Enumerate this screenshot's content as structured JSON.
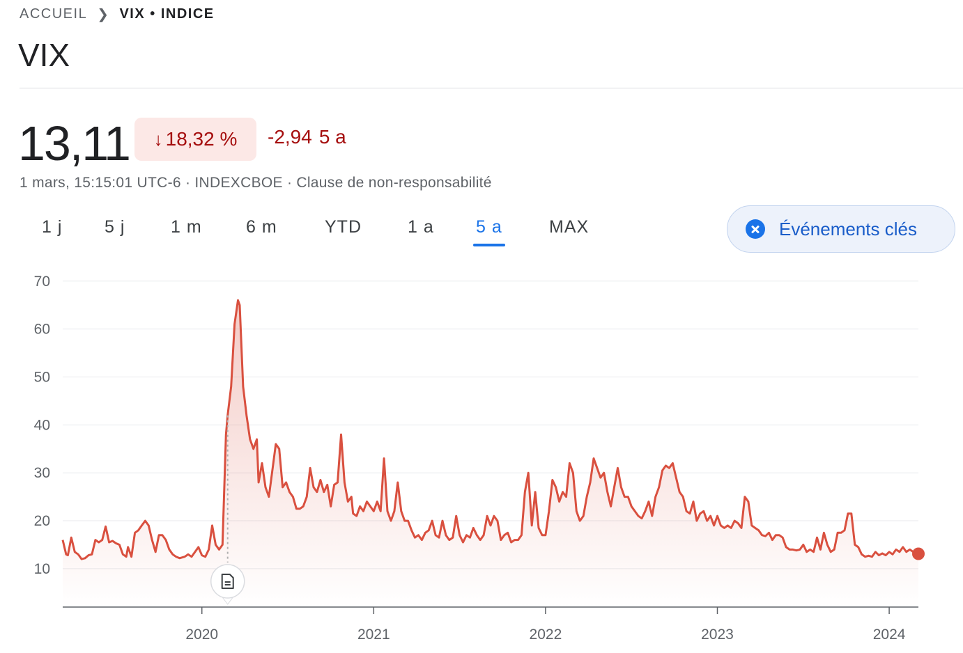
{
  "breadcrumb": {
    "home": "ACCUEIL",
    "current": "VIX • INDICE"
  },
  "title": "VIX",
  "quote": {
    "price": "13,11",
    "change_pct": "18,32 %",
    "change_abs": "-2,94",
    "period": "5 a",
    "meta": "1 mars, 15:15:01 UTC-6 · INDEXCBOE · Clause de non-responsabilité"
  },
  "tabs": [
    {
      "label": "1 j"
    },
    {
      "label": "5 j"
    },
    {
      "label": "1 m"
    },
    {
      "label": "6 m"
    },
    {
      "label": "YTD"
    },
    {
      "label": "1 a"
    },
    {
      "label": "5 a",
      "active": true
    },
    {
      "label": "MAX"
    }
  ],
  "events_button": {
    "label": "Événements clés"
  },
  "colors": {
    "line": "#d9503f",
    "negative_text": "#a50e0e",
    "negative_bg": "#fce8e6",
    "accent": "#1a73e8"
  },
  "chart_data": {
    "type": "area",
    "y_ticks": [
      10,
      20,
      30,
      40,
      50,
      60,
      70
    ],
    "ylim": [
      2,
      72
    ],
    "xlim": [
      2019.19,
      2024.17
    ],
    "x_ticks": [
      {
        "value": 2020.0,
        "label": "2020"
      },
      {
        "value": 2021.0,
        "label": "2021"
      },
      {
        "value": 2022.0,
        "label": "2022"
      },
      {
        "value": 2023.0,
        "label": "2023"
      },
      {
        "value": 2024.0,
        "label": "2024"
      }
    ],
    "event_marker": {
      "x": 2020.15,
      "icon": "document-icon"
    },
    "grid": true,
    "points": [
      [
        2019.19,
        16
      ],
      [
        2019.21,
        13
      ],
      [
        2019.22,
        12.8
      ],
      [
        2019.24,
        16.5
      ],
      [
        2019.26,
        13.5
      ],
      [
        2019.28,
        13
      ],
      [
        2019.3,
        12
      ],
      [
        2019.32,
        12.2
      ],
      [
        2019.34,
        12.8
      ],
      [
        2019.36,
        13
      ],
      [
        2019.38,
        16
      ],
      [
        2019.4,
        15.5
      ],
      [
        2019.42,
        16
      ],
      [
        2019.44,
        18.8
      ],
      [
        2019.46,
        15.5
      ],
      [
        2019.48,
        15.8
      ],
      [
        2019.5,
        15.3
      ],
      [
        2019.52,
        15
      ],
      [
        2019.54,
        13
      ],
      [
        2019.56,
        12.5
      ],
      [
        2019.57,
        14.5
      ],
      [
        2019.59,
        12.5
      ],
      [
        2019.61,
        17.5
      ],
      [
        2019.63,
        18
      ],
      [
        2019.65,
        19
      ],
      [
        2019.67,
        20
      ],
      [
        2019.69,
        19
      ],
      [
        2019.71,
        16
      ],
      [
        2019.73,
        13.5
      ],
      [
        2019.75,
        17
      ],
      [
        2019.77,
        17
      ],
      [
        2019.79,
        16
      ],
      [
        2019.81,
        14
      ],
      [
        2019.83,
        13
      ],
      [
        2019.85,
        12.5
      ],
      [
        2019.87,
        12.2
      ],
      [
        2019.9,
        12.5
      ],
      [
        2019.92,
        13
      ],
      [
        2019.94,
        12.5
      ],
      [
        2019.96,
        13.5
      ],
      [
        2019.98,
        14.5
      ],
      [
        2020.0,
        12.8
      ],
      [
        2020.02,
        12.5
      ],
      [
        2020.04,
        14
      ],
      [
        2020.06,
        19
      ],
      [
        2020.08,
        15
      ],
      [
        2020.1,
        14
      ],
      [
        2020.12,
        15
      ],
      [
        2020.14,
        38
      ],
      [
        2020.15,
        42
      ],
      [
        2020.17,
        48
      ],
      [
        2020.19,
        61
      ],
      [
        2020.21,
        66
      ],
      [
        2020.22,
        65
      ],
      [
        2020.24,
        48
      ],
      [
        2020.26,
        42
      ],
      [
        2020.28,
        37
      ],
      [
        2020.3,
        35
      ],
      [
        2020.32,
        37
      ],
      [
        2020.33,
        28
      ],
      [
        2020.35,
        32
      ],
      [
        2020.37,
        27
      ],
      [
        2020.39,
        25
      ],
      [
        2020.43,
        36
      ],
      [
        2020.45,
        35
      ],
      [
        2020.47,
        27
      ],
      [
        2020.49,
        28
      ],
      [
        2020.51,
        26
      ],
      [
        2020.53,
        25
      ],
      [
        2020.55,
        22.5
      ],
      [
        2020.57,
        22.5
      ],
      [
        2020.59,
        23
      ],
      [
        2020.61,
        25
      ],
      [
        2020.63,
        31
      ],
      [
        2020.65,
        27
      ],
      [
        2020.67,
        26
      ],
      [
        2020.69,
        28.5
      ],
      [
        2020.71,
        26
      ],
      [
        2020.73,
        27.5
      ],
      [
        2020.75,
        23
      ],
      [
        2020.77,
        27.5
      ],
      [
        2020.79,
        28
      ],
      [
        2020.81,
        38
      ],
      [
        2020.83,
        28
      ],
      [
        2020.85,
        24
      ],
      [
        2020.87,
        25
      ],
      [
        2020.88,
        21.5
      ],
      [
        2020.9,
        21
      ],
      [
        2020.92,
        23
      ],
      [
        2020.94,
        22
      ],
      [
        2020.96,
        24
      ],
      [
        2020.98,
        23
      ],
      [
        2021.0,
        22
      ],
      [
        2021.02,
        24
      ],
      [
        2021.04,
        22
      ],
      [
        2021.06,
        33
      ],
      [
        2021.08,
        22
      ],
      [
        2021.1,
        20
      ],
      [
        2021.12,
        22
      ],
      [
        2021.14,
        28
      ],
      [
        2021.16,
        22
      ],
      [
        2021.18,
        20
      ],
      [
        2021.2,
        20
      ],
      [
        2021.22,
        18
      ],
      [
        2021.24,
        16.5
      ],
      [
        2021.26,
        17
      ],
      [
        2021.28,
        16
      ],
      [
        2021.3,
        17.5
      ],
      [
        2021.32,
        18
      ],
      [
        2021.34,
        20
      ],
      [
        2021.36,
        17
      ],
      [
        2021.38,
        16.5
      ],
      [
        2021.4,
        20
      ],
      [
        2021.42,
        17
      ],
      [
        2021.44,
        16
      ],
      [
        2021.46,
        16.5
      ],
      [
        2021.48,
        21
      ],
      [
        2021.5,
        17
      ],
      [
        2021.52,
        15.5
      ],
      [
        2021.54,
        17
      ],
      [
        2021.56,
        16.5
      ],
      [
        2021.58,
        18.5
      ],
      [
        2021.6,
        17
      ],
      [
        2021.62,
        16
      ],
      [
        2021.64,
        17
      ],
      [
        2021.66,
        21
      ],
      [
        2021.68,
        19
      ],
      [
        2021.7,
        21
      ],
      [
        2021.72,
        20
      ],
      [
        2021.74,
        16
      ],
      [
        2021.76,
        17
      ],
      [
        2021.78,
        17.5
      ],
      [
        2021.8,
        15.5
      ],
      [
        2021.82,
        16
      ],
      [
        2021.84,
        16
      ],
      [
        2021.86,
        17
      ],
      [
        2021.88,
        26
      ],
      [
        2021.9,
        30
      ],
      [
        2021.92,
        19
      ],
      [
        2021.94,
        26
      ],
      [
        2021.96,
        18.5
      ],
      [
        2021.98,
        17
      ],
      [
        2022.0,
        17
      ],
      [
        2022.02,
        22
      ],
      [
        2022.04,
        28.5
      ],
      [
        2022.06,
        27
      ],
      [
        2022.08,
        24
      ],
      [
        2022.1,
        26
      ],
      [
        2022.12,
        25
      ],
      [
        2022.14,
        32
      ],
      [
        2022.16,
        30
      ],
      [
        2022.18,
        22
      ],
      [
        2022.2,
        20
      ],
      [
        2022.22,
        21
      ],
      [
        2022.24,
        25
      ],
      [
        2022.26,
        28
      ],
      [
        2022.28,
        33
      ],
      [
        2022.3,
        31
      ],
      [
        2022.32,
        29
      ],
      [
        2022.34,
        30
      ],
      [
        2022.36,
        26
      ],
      [
        2022.38,
        23
      ],
      [
        2022.4,
        27
      ],
      [
        2022.42,
        31
      ],
      [
        2022.44,
        27
      ],
      [
        2022.46,
        25
      ],
      [
        2022.48,
        25
      ],
      [
        2022.5,
        23
      ],
      [
        2022.52,
        22
      ],
      [
        2022.54,
        21
      ],
      [
        2022.56,
        20.5
      ],
      [
        2022.58,
        22
      ],
      [
        2022.6,
        24
      ],
      [
        2022.62,
        21
      ],
      [
        2022.64,
        25
      ],
      [
        2022.66,
        27
      ],
      [
        2022.68,
        30.5
      ],
      [
        2022.7,
        31.5
      ],
      [
        2022.72,
        31
      ],
      [
        2022.74,
        32
      ],
      [
        2022.76,
        29
      ],
      [
        2022.78,
        26
      ],
      [
        2022.8,
        25
      ],
      [
        2022.82,
        22
      ],
      [
        2022.84,
        21.5
      ],
      [
        2022.86,
        24
      ],
      [
        2022.88,
        20
      ],
      [
        2022.9,
        21.5
      ],
      [
        2022.92,
        22
      ],
      [
        2022.94,
        20
      ],
      [
        2022.96,
        21
      ],
      [
        2022.98,
        19
      ],
      [
        2023.0,
        21
      ],
      [
        2023.02,
        19
      ],
      [
        2023.04,
        18.5
      ],
      [
        2023.06,
        19
      ],
      [
        2023.08,
        18.5
      ],
      [
        2023.1,
        20
      ],
      [
        2023.12,
        19.5
      ],
      [
        2023.14,
        18.5
      ],
      [
        2023.16,
        25
      ],
      [
        2023.18,
        24
      ],
      [
        2023.2,
        19
      ],
      [
        2023.22,
        18.5
      ],
      [
        2023.24,
        18
      ],
      [
        2023.26,
        17
      ],
      [
        2023.28,
        16.8
      ],
      [
        2023.3,
        17.5
      ],
      [
        2023.32,
        16
      ],
      [
        2023.34,
        17
      ],
      [
        2023.36,
        17
      ],
      [
        2023.38,
        16.5
      ],
      [
        2023.4,
        14.5
      ],
      [
        2023.42,
        14
      ],
      [
        2023.44,
        14
      ],
      [
        2023.46,
        13.8
      ],
      [
        2023.48,
        14
      ],
      [
        2023.5,
        15
      ],
      [
        2023.52,
        13.5
      ],
      [
        2023.54,
        14
      ],
      [
        2023.56,
        13.5
      ],
      [
        2023.58,
        16.5
      ],
      [
        2023.6,
        14
      ],
      [
        2023.62,
        17.5
      ],
      [
        2023.64,
        15
      ],
      [
        2023.66,
        13.5
      ],
      [
        2023.68,
        14
      ],
      [
        2023.7,
        17.5
      ],
      [
        2023.72,
        17.5
      ],
      [
        2023.74,
        18
      ],
      [
        2023.76,
        21.5
      ],
      [
        2023.78,
        21.5
      ],
      [
        2023.8,
        15
      ],
      [
        2023.82,
        14.5
      ],
      [
        2023.84,
        13
      ],
      [
        2023.86,
        12.5
      ],
      [
        2023.88,
        12.7
      ],
      [
        2023.9,
        12.5
      ],
      [
        2023.92,
        13.5
      ],
      [
        2023.94,
        12.8
      ],
      [
        2023.96,
        13.2
      ],
      [
        2023.98,
        12.8
      ],
      [
        2024.0,
        13.5
      ],
      [
        2024.02,
        13
      ],
      [
        2024.04,
        14
      ],
      [
        2024.06,
        13.5
      ],
      [
        2024.08,
        14.5
      ],
      [
        2024.1,
        13.5
      ],
      [
        2024.12,
        14
      ],
      [
        2024.14,
        13.5
      ],
      [
        2024.17,
        13.11
      ]
    ]
  }
}
